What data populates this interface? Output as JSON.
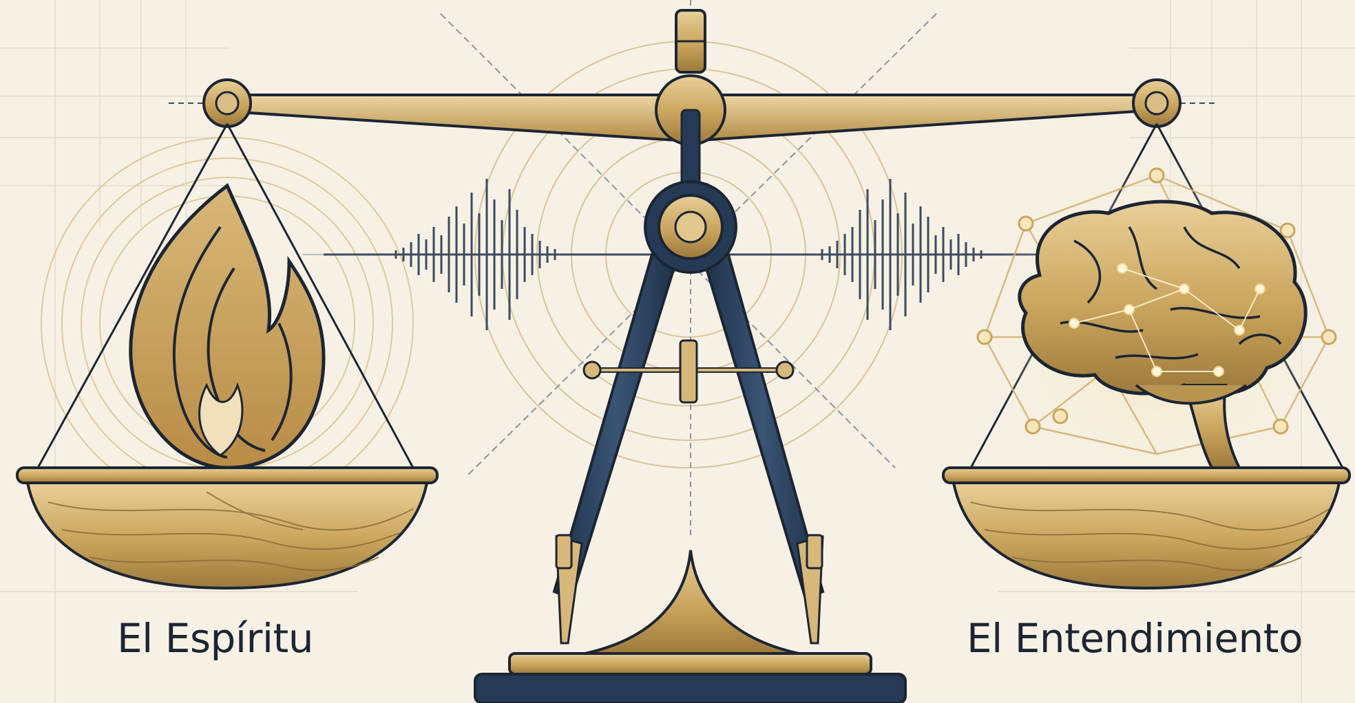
{
  "labels": {
    "left": "El Espíritu",
    "right": "El Entendimiento"
  },
  "icons": {
    "left_pan": "flame-icon",
    "right_pan": "brain-network-icon",
    "center": "compass-icon",
    "waveform": "sound-wave-icon"
  },
  "colors": {
    "background": "#f6f1e4",
    "gold": "#c9a45c",
    "navy": "#253a55",
    "ink": "#1c2533"
  }
}
